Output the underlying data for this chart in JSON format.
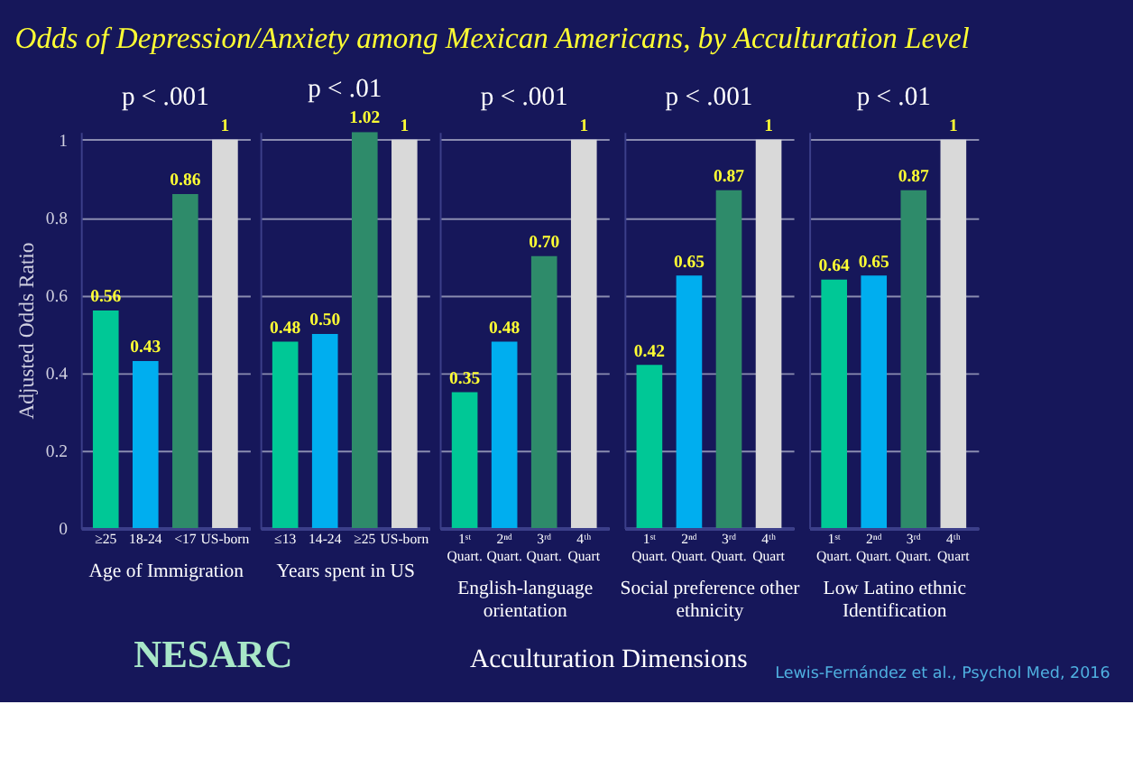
{
  "chart_data": [
    {
      "type": "bar",
      "title": "p < .001",
      "xlabel": "Age of Immigration",
      "ylabel": "Adjusted Odds Ratio",
      "categories": [
        "≥25",
        "18-24",
        "<17",
        "US-born"
      ],
      "values": [
        0.56,
        0.43,
        0.86,
        1
      ],
      "colors": [
        "#00c896",
        "#00aeef",
        "#2e8b6a",
        "#d9d9d9"
      ],
      "value_labels": [
        "0.56",
        "0.43",
        "0.86",
        "1"
      ],
      "ylim": [
        0,
        1.02
      ],
      "yticks": [
        0,
        0.2,
        0.4,
        0.6,
        0.8,
        1
      ],
      "grid": "y"
    },
    {
      "type": "bar",
      "title": "p < .01",
      "xlabel": "Years spent in US",
      "categories": [
        "≤13",
        "14-24",
        "≥25",
        "US-born"
      ],
      "values": [
        0.48,
        0.5,
        1.02,
        1
      ],
      "colors": [
        "#00c896",
        "#00aeef",
        "#2e8b6a",
        "#d9d9d9"
      ],
      "value_labels": [
        "0.48",
        "0.50",
        "1.02",
        "1"
      ],
      "ylim": [
        0,
        1.02
      ],
      "yticks": [
        0,
        0.2,
        0.4,
        0.6,
        0.8,
        1
      ],
      "grid": "y",
      "tick_labels": "x"
    },
    {
      "type": "bar",
      "title": "p < .001",
      "xlabel": "English-language orientation",
      "categories": [
        "1ˢᵗ Quart.",
        "2ⁿᵈ Quart.",
        "3ʳᵈ Quart.",
        "4ᵗʰ Quart"
      ],
      "values": [
        0.35,
        0.48,
        0.7,
        1
      ],
      "colors": [
        "#00c896",
        "#00aeef",
        "#2e8b6a",
        "#d9d9d9"
      ],
      "value_labels": [
        "0.35",
        "0.48",
        "0.70",
        "1"
      ],
      "ylim": [
        0,
        1.02
      ],
      "yticks": [
        0,
        0.2,
        0.4,
        0.6,
        0.8,
        1
      ],
      "grid": "y",
      "tick_labels": "x"
    },
    {
      "type": "bar",
      "title": "p < .001",
      "xlabel": "Social preference other ethnicity",
      "categories": [
        "1ˢᵗ Quart.",
        "2ⁿᵈ Quart.",
        "3ʳᵈ Quart.",
        "4ᵗʰ Quart"
      ],
      "values": [
        0.42,
        0.65,
        0.87,
        1
      ],
      "colors": [
        "#00c896",
        "#00aeef",
        "#2e8b6a",
        "#d9d9d9"
      ],
      "value_labels": [
        "0.42",
        "0.65",
        "0.87",
        "1"
      ],
      "ylim": [
        0,
        1.02
      ],
      "yticks": [
        0,
        0.2,
        0.4,
        0.6,
        0.8,
        1
      ],
      "grid": "y",
      "tick_labels": "x"
    },
    {
      "type": "bar",
      "title": "p < .01",
      "xlabel": "Low Latino ethnic Identification",
      "categories": [
        "1ˢᵗ Quart.",
        "2ⁿᵈ Quart.",
        "3ʳᵈ Quart.",
        "4ᵗʰ Quart"
      ],
      "values": [
        0.64,
        0.65,
        0.87,
        1
      ],
      "colors": [
        "#00c896",
        "#00aeef",
        "#2e8b6a",
        "#d9d9d9"
      ],
      "value_labels": [
        "0.64",
        "0.65",
        "0.87",
        "1"
      ],
      "ylim": [
        0,
        1.02
      ],
      "yticks": [
        0,
        0.2,
        0.4,
        0.6,
        0.8,
        1
      ],
      "grid": "y",
      "tick_labels": "x"
    },
    {
      "type": "other",
      "title": "Odds of Depression/Anxiety among Mexican Americans, by Acculturation Level",
      "xlabel": "Acculturation Dimensions",
      "annotations": [
        "NESARC",
        "Lewis-Fernández et al., Psychol Med, 2016"
      ]
    }
  ]
}
